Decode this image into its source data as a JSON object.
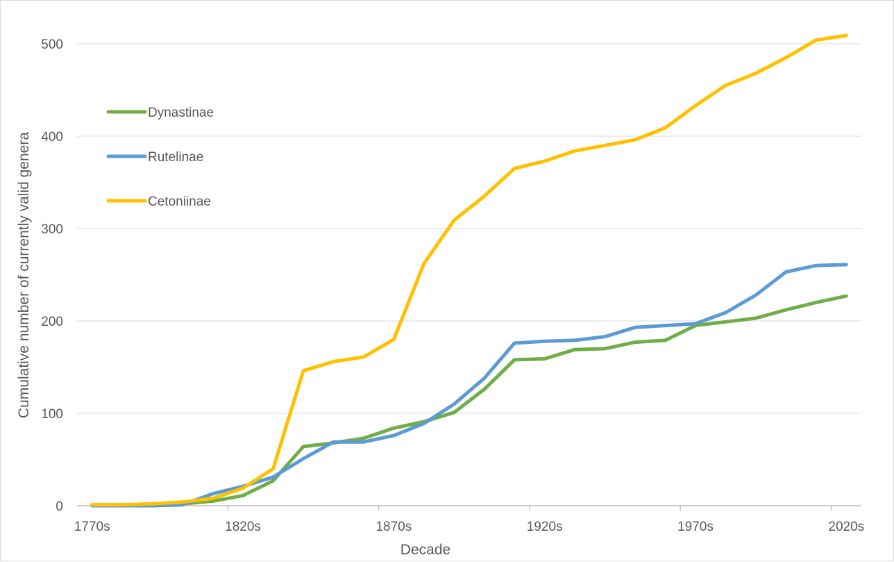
{
  "chart_data": {
    "type": "line",
    "title": "",
    "xlabel": "Decade",
    "ylabel": "Cumulative number of currently valid genera",
    "ylim": [
      0,
      500
    ],
    "yticks": [
      "0",
      "100",
      "200",
      "300",
      "400",
      "500"
    ],
    "x_tick_labels": [
      "1770s",
      "1820s",
      "1870s",
      "1920s",
      "1970s",
      "2020s"
    ],
    "grid": "horizontal",
    "legend_position": "top-left",
    "categories": [
      "1770s",
      "1780s",
      "1790s",
      "1800s",
      "1810s",
      "1820s",
      "1830s",
      "1840s",
      "1850s",
      "1860s",
      "1870s",
      "1880s",
      "1890s",
      "1900s",
      "1910s",
      "1920s",
      "1930s",
      "1940s",
      "1950s",
      "1960s",
      "1970s",
      "1980s",
      "1990s",
      "2000s",
      "2010s",
      "2020s"
    ],
    "series": [
      {
        "name": "Dynastinae",
        "color": "#70ad47",
        "values": [
          1,
          1,
          1,
          2,
          5,
          11,
          27,
          64,
          68,
          73,
          84,
          91,
          101,
          126,
          158,
          159,
          169,
          170,
          177,
          179,
          195,
          199,
          203,
          212,
          220,
          227
        ]
      },
      {
        "name": "Rutelinae",
        "color": "#5b9bd5",
        "values": [
          0,
          0,
          0,
          1,
          13,
          21,
          31,
          51,
          69,
          69,
          76,
          89,
          110,
          138,
          176,
          178,
          179,
          183,
          193,
          195,
          197,
          209,
          228,
          253,
          260,
          261
        ]
      },
      {
        "name": "Cetoniinae",
        "color": "#ffc000",
        "values": [
          1,
          1,
          2,
          4,
          8,
          19,
          40,
          146,
          156,
          161,
          180,
          262,
          309,
          335,
          365,
          373,
          384,
          390,
          396,
          409,
          433,
          455,
          468,
          485,
          504,
          509
        ]
      }
    ]
  }
}
